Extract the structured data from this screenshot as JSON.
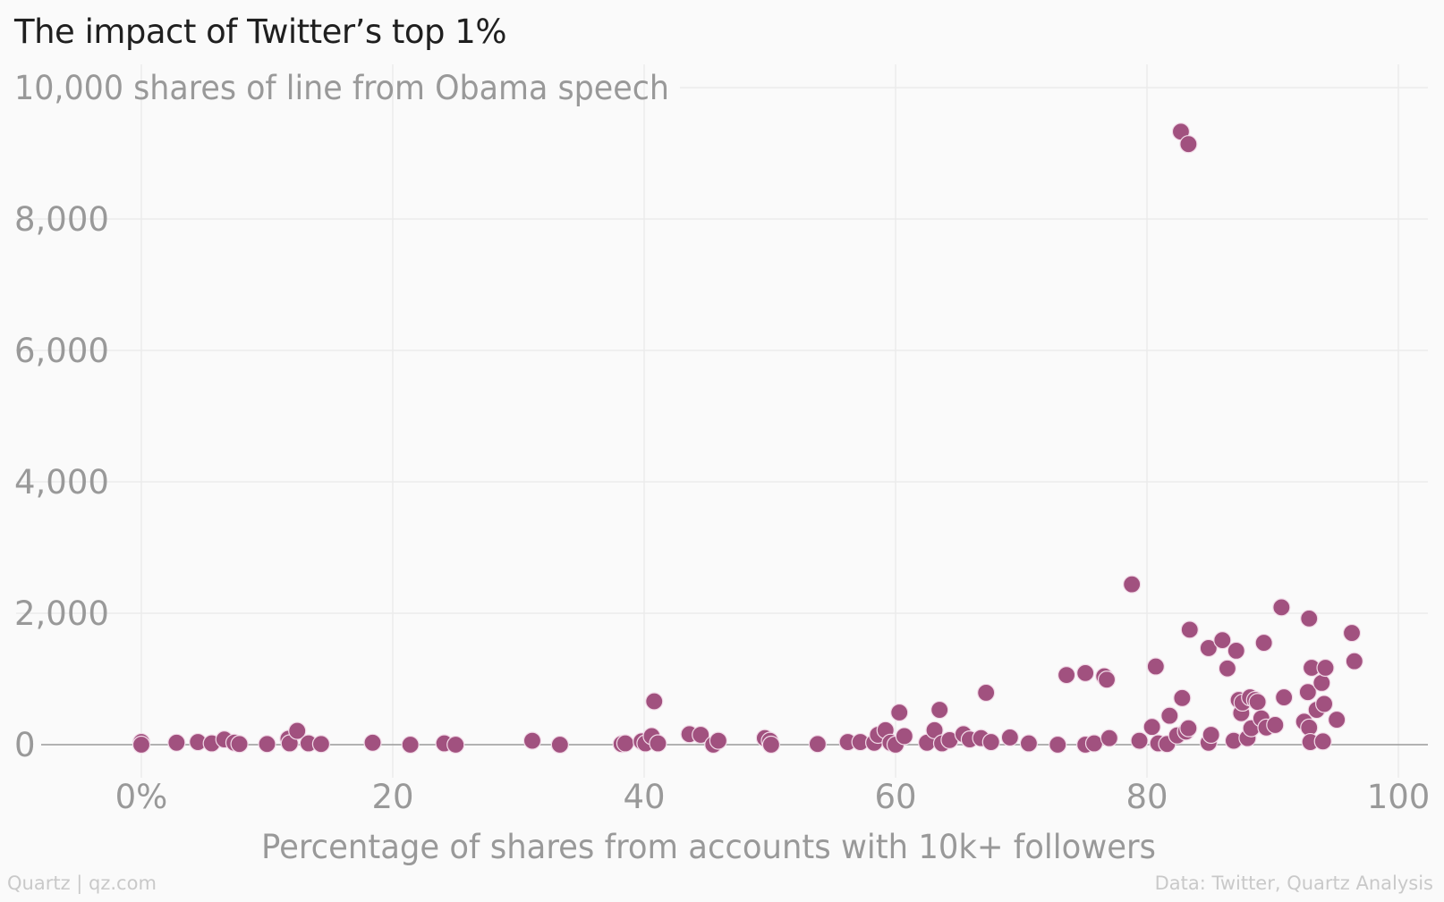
{
  "title": "The impact of Twitter’s top 1%",
  "footer": {
    "source_left": "Quartz | qz.com",
    "source_right": "Data: Twitter, Quartz Analysis"
  },
  "colors": {
    "point": "#a1517f",
    "point_stroke": "#f2dbe8",
    "grid": "#ebebeb",
    "axis_text": "#999999",
    "baseline": "#9a9a9a"
  },
  "chart_data": {
    "type": "scatter",
    "title": "The impact of Twitter’s top 1%",
    "xlabel": "Percentage of shares from accounts with 10k+ followers",
    "ylabel": "10,000 shares of line from Obama speech",
    "xlim": [
      -8,
      102
    ],
    "ylim": [
      -400,
      10400
    ],
    "x_ticks": [
      0,
      20,
      40,
      60,
      80,
      100
    ],
    "x_tick_labels": [
      "0%",
      "20",
      "40",
      "60",
      "80",
      "100"
    ],
    "y_ticks": [
      0,
      2000,
      4000,
      6000,
      8000,
      10000
    ],
    "y_tick_labels": [
      "0",
      "2,000",
      "4,000",
      "6,000",
      "8,000",
      "10,000 shares of line from Obama speech"
    ],
    "grid": true,
    "legend": "none",
    "points": [
      {
        "x": 0,
        "y": 40
      },
      {
        "x": 0,
        "y": 0
      },
      {
        "x": 2.8,
        "y": 30
      },
      {
        "x": 4.5,
        "y": 40
      },
      {
        "x": 5.6,
        "y": 20
      },
      {
        "x": 6.6,
        "y": 80
      },
      {
        "x": 7.4,
        "y": 30
      },
      {
        "x": 7.8,
        "y": 10
      },
      {
        "x": 10,
        "y": 10
      },
      {
        "x": 11.7,
        "y": 90
      },
      {
        "x": 11.8,
        "y": 20
      },
      {
        "x": 12.4,
        "y": 210
      },
      {
        "x": 13.3,
        "y": 20
      },
      {
        "x": 14.3,
        "y": 10
      },
      {
        "x": 18.4,
        "y": 30
      },
      {
        "x": 21.4,
        "y": 0
      },
      {
        "x": 24.1,
        "y": 20
      },
      {
        "x": 25,
        "y": 0
      },
      {
        "x": 31.1,
        "y": 60
      },
      {
        "x": 33.3,
        "y": 0
      },
      {
        "x": 38.2,
        "y": 10
      },
      {
        "x": 38.5,
        "y": 20
      },
      {
        "x": 39.8,
        "y": 50
      },
      {
        "x": 40.1,
        "y": 20
      },
      {
        "x": 40.6,
        "y": 130
      },
      {
        "x": 40.8,
        "y": 660
      },
      {
        "x": 41.1,
        "y": 20
      },
      {
        "x": 43.6,
        "y": 160
      },
      {
        "x": 44.5,
        "y": 150
      },
      {
        "x": 45.5,
        "y": 0
      },
      {
        "x": 45.9,
        "y": 60
      },
      {
        "x": 49.6,
        "y": 100
      },
      {
        "x": 50,
        "y": 60
      },
      {
        "x": 50.1,
        "y": 0
      },
      {
        "x": 53.8,
        "y": 10
      },
      {
        "x": 56.2,
        "y": 40
      },
      {
        "x": 57.2,
        "y": 40
      },
      {
        "x": 58.3,
        "y": 30
      },
      {
        "x": 58.6,
        "y": 150
      },
      {
        "x": 59.2,
        "y": 220
      },
      {
        "x": 59.6,
        "y": 30
      },
      {
        "x": 60,
        "y": 0
      },
      {
        "x": 60.3,
        "y": 490
      },
      {
        "x": 60.7,
        "y": 130
      },
      {
        "x": 62.5,
        "y": 30
      },
      {
        "x": 63.1,
        "y": 220
      },
      {
        "x": 63.5,
        "y": 530
      },
      {
        "x": 63.7,
        "y": 20
      },
      {
        "x": 64.3,
        "y": 70
      },
      {
        "x": 65.4,
        "y": 160
      },
      {
        "x": 65.9,
        "y": 80
      },
      {
        "x": 66.8,
        "y": 100
      },
      {
        "x": 67.2,
        "y": 790
      },
      {
        "x": 67.6,
        "y": 40
      },
      {
        "x": 69.1,
        "y": 110
      },
      {
        "x": 70.6,
        "y": 20
      },
      {
        "x": 72.9,
        "y": 0
      },
      {
        "x": 73.6,
        "y": 1060
      },
      {
        "x": 75.1,
        "y": 1090
      },
      {
        "x": 75.1,
        "y": 0
      },
      {
        "x": 75.8,
        "y": 20
      },
      {
        "x": 76.6,
        "y": 1040
      },
      {
        "x": 76.8,
        "y": 990
      },
      {
        "x": 77,
        "y": 100
      },
      {
        "x": 78.8,
        "y": 2440
      },
      {
        "x": 79.4,
        "y": 60
      },
      {
        "x": 80.4,
        "y": 270
      },
      {
        "x": 80.7,
        "y": 1190
      },
      {
        "x": 80.9,
        "y": 20
      },
      {
        "x": 81.6,
        "y": 10
      },
      {
        "x": 81.8,
        "y": 440
      },
      {
        "x": 82.4,
        "y": 140
      },
      {
        "x": 82.7,
        "y": 9330
      },
      {
        "x": 82.8,
        "y": 710
      },
      {
        "x": 83.1,
        "y": 200
      },
      {
        "x": 83.3,
        "y": 250
      },
      {
        "x": 83.3,
        "y": 9140
      },
      {
        "x": 83.4,
        "y": 1750
      },
      {
        "x": 84.9,
        "y": 30
      },
      {
        "x": 84.9,
        "y": 1470
      },
      {
        "x": 85.1,
        "y": 150
      },
      {
        "x": 86,
        "y": 1590
      },
      {
        "x": 86.4,
        "y": 1160
      },
      {
        "x": 86.9,
        "y": 60
      },
      {
        "x": 87.1,
        "y": 1430
      },
      {
        "x": 87.3,
        "y": 680
      },
      {
        "x": 87.5,
        "y": 480
      },
      {
        "x": 87.6,
        "y": 640
      },
      {
        "x": 88,
        "y": 100
      },
      {
        "x": 88.2,
        "y": 720
      },
      {
        "x": 88.3,
        "y": 250
      },
      {
        "x": 88.6,
        "y": 680
      },
      {
        "x": 88.8,
        "y": 650
      },
      {
        "x": 89.1,
        "y": 400
      },
      {
        "x": 89.3,
        "y": 1550
      },
      {
        "x": 89.5,
        "y": 260
      },
      {
        "x": 90.2,
        "y": 300
      },
      {
        "x": 90.7,
        "y": 2090
      },
      {
        "x": 90.9,
        "y": 720
      },
      {
        "x": 92.5,
        "y": 350
      },
      {
        "x": 92.8,
        "y": 800
      },
      {
        "x": 92.9,
        "y": 1920
      },
      {
        "x": 92.9,
        "y": 260
      },
      {
        "x": 93,
        "y": 40
      },
      {
        "x": 93.1,
        "y": 1170
      },
      {
        "x": 93.5,
        "y": 530
      },
      {
        "x": 93.9,
        "y": 940
      },
      {
        "x": 94,
        "y": 50
      },
      {
        "x": 94.1,
        "y": 620
      },
      {
        "x": 94.2,
        "y": 1170
      },
      {
        "x": 95.1,
        "y": 380
      },
      {
        "x": 96.3,
        "y": 1700
      },
      {
        "x": 96.5,
        "y": 1270
      }
    ]
  }
}
